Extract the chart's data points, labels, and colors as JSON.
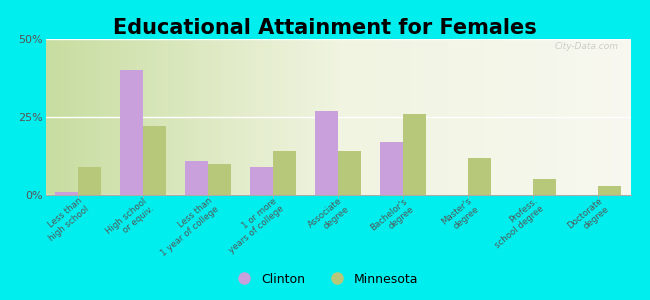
{
  "title": "Educational Attainment for Females",
  "categories": [
    "Less than\nhigh school",
    "High school\nor equiv.",
    "Less than\n1 year of college",
    "1 or more\nyears of college",
    "Associate\ndegree",
    "Bachelor's\ndegree",
    "Master's\ndegree",
    "Profess.\nschool degree",
    "Doctorate\ndegree"
  ],
  "clinton": [
    1,
    40,
    11,
    9,
    27,
    17,
    0,
    0,
    0
  ],
  "minnesota": [
    9,
    22,
    10,
    14,
    14,
    26,
    12,
    5,
    3
  ],
  "clinton_color": "#c9a0dc",
  "minnesota_color": "#b8c87a",
  "bg_color": "#00eeee",
  "ylim": [
    0,
    50
  ],
  "yticks": [
    0,
    25,
    50
  ],
  "ytick_labels": [
    "0%",
    "25%",
    "50%"
  ],
  "title_fontsize": 15,
  "legend_labels": [
    "Clinton",
    "Minnesota"
  ],
  "bar_width": 0.35
}
